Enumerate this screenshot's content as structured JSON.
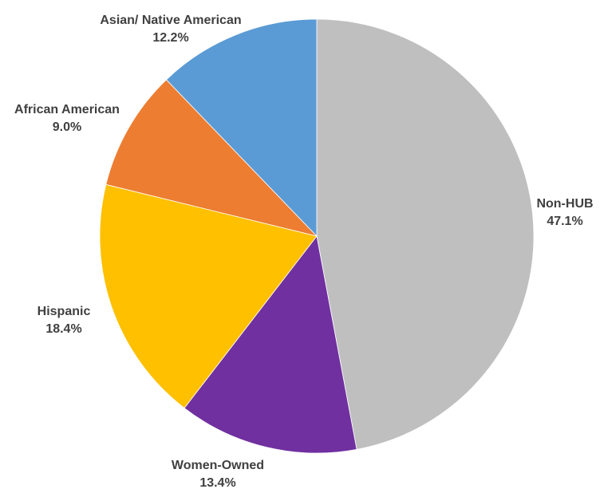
{
  "chart_data": {
    "type": "pie",
    "title": "",
    "start_angle_deg": 0,
    "direction": "clockwise",
    "slices": [
      {
        "label": "Non-HUB",
        "value": 47.1,
        "value_label": "47.1%",
        "color": "#bfbfbf"
      },
      {
        "label": "Women-Owned",
        "value": 13.4,
        "value_label": "13.4%",
        "color": "#7030a0"
      },
      {
        "label": "Hispanic",
        "value": 18.4,
        "value_label": "18.4%",
        "color": "#ffc000"
      },
      {
        "label": "African American",
        "value": 9.0,
        "value_label": "9.0%",
        "color": "#ed7d31"
      },
      {
        "label": "Asian/ Native American",
        "value": 12.2,
        "value_label": "12.2%",
        "color": "#5b9bd5"
      }
    ],
    "legend": "none"
  }
}
